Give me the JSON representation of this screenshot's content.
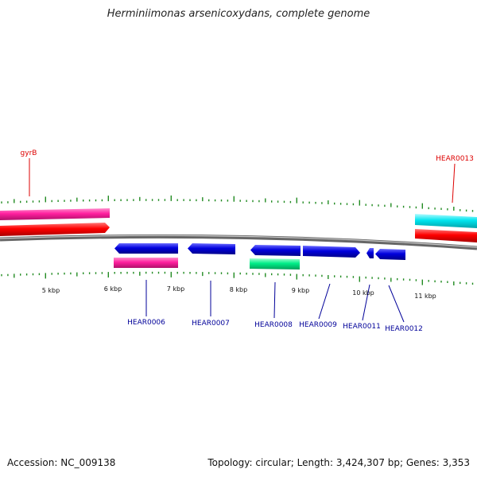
{
  "title": "Herminiimonas arsenicoxydans, complete genome",
  "footer": {
    "accession": "Accession: NC_009138",
    "stats": "Topology: circular; Length: 3,424,307 bp; Genes: 3,353"
  },
  "colors": {
    "tick": "#228B22",
    "backbone": "#777777",
    "forward_gene": "#ff0000",
    "reverse_gene": "#0000dd",
    "rrna_pink": "#ff1f9e",
    "trna_cyan": "#00e5ee",
    "misc_green": "#00ee88",
    "label_red": "#dd0000",
    "label_blue": "#000099"
  },
  "kbp_labels": [
    "5 kbp",
    "6 kbp",
    "7 kbp",
    "8 kbp",
    "9 kbp",
    "10 kbp",
    "11 kbp"
  ],
  "gene_labels": [
    {
      "name": "gyrB",
      "color": "red"
    },
    {
      "name": "HEAR0013",
      "color": "red"
    },
    {
      "name": "HEAR0006",
      "color": "blue"
    },
    {
      "name": "HEAR0007",
      "color": "blue"
    },
    {
      "name": "HEAR0008",
      "color": "blue"
    },
    {
      "name": "HEAR0009",
      "color": "blue"
    },
    {
      "name": "HEAR0011",
      "color": "blue"
    },
    {
      "name": "HEAR0012",
      "color": "blue"
    }
  ]
}
